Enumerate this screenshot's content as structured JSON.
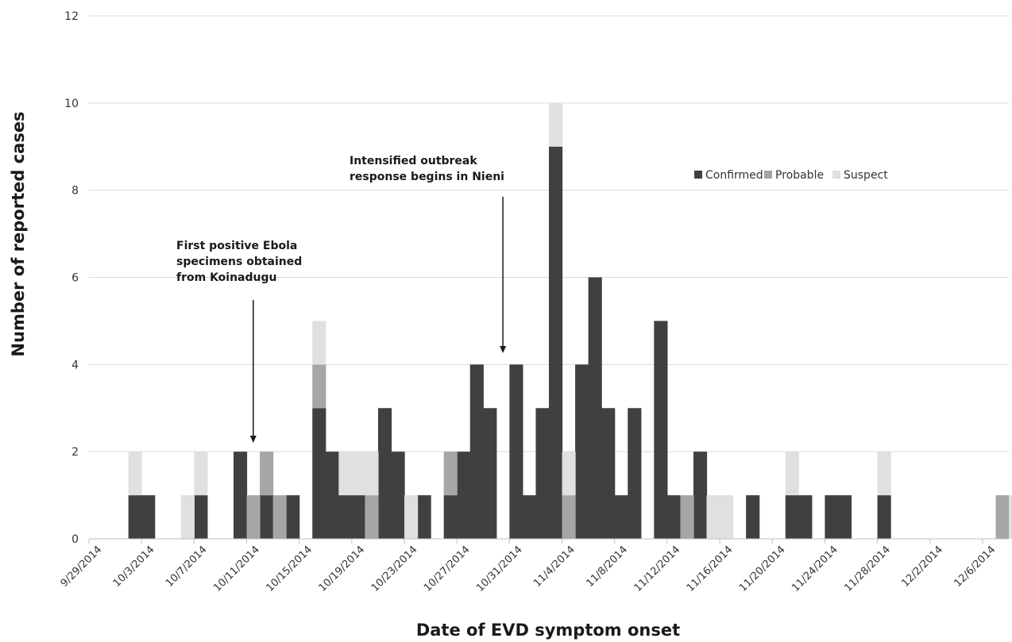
{
  "chart_data": {
    "type": "bar",
    "stacked": true,
    "xlabel": "Date of EVD symptom onset",
    "ylabel": "Number of reported cases",
    "ylim": [
      0,
      12
    ],
    "yticks": [
      0,
      2,
      4,
      6,
      8,
      10,
      12
    ],
    "grid": true,
    "legend_position": "top-right",
    "start_date": "2014-09-29",
    "num_days": 70,
    "xtick_labels": [
      "9/29/2014",
      "10/3/2014",
      "10/7/2014",
      "10/11/2014",
      "10/15/2014",
      "10/19/2014",
      "10/23/2014",
      "10/27/2014",
      "10/31/2014",
      "11/4/2014",
      "11/8/2014",
      "11/12/2014",
      "11/16/2014",
      "11/20/2014",
      "11/24/2014",
      "11/28/2014",
      "12/2/2014",
      "12/6/2014"
    ],
    "series": [
      {
        "name": "Confirmed",
        "color": "#404040",
        "points": [
          [
            "2014-10-02",
            1
          ],
          [
            "2014-10-03",
            1
          ],
          [
            "2014-10-07",
            1
          ],
          [
            "2014-10-10",
            2
          ],
          [
            "2014-10-12",
            1
          ],
          [
            "2014-10-14",
            1
          ],
          [
            "2014-10-16",
            3
          ],
          [
            "2014-10-17",
            2
          ],
          [
            "2014-10-18",
            1
          ],
          [
            "2014-10-19",
            1
          ],
          [
            "2014-10-21",
            3
          ],
          [
            "2014-10-22",
            2
          ],
          [
            "2014-10-24",
            1
          ],
          [
            "2014-10-26",
            1
          ],
          [
            "2014-10-27",
            2
          ],
          [
            "2014-10-28",
            4
          ],
          [
            "2014-10-29",
            3
          ],
          [
            "2014-10-31",
            4
          ],
          [
            "2014-11-01",
            1
          ],
          [
            "2014-11-02",
            3
          ],
          [
            "2014-11-03",
            9
          ],
          [
            "2014-11-05",
            4
          ],
          [
            "2014-11-06",
            6
          ],
          [
            "2014-11-07",
            3
          ],
          [
            "2014-11-08",
            1
          ],
          [
            "2014-11-09",
            3
          ],
          [
            "2014-11-11",
            5
          ],
          [
            "2014-11-12",
            1
          ],
          [
            "2014-11-14",
            2
          ],
          [
            "2014-11-18",
            1
          ],
          [
            "2014-11-21",
            1
          ],
          [
            "2014-11-22",
            1
          ],
          [
            "2014-11-24",
            1
          ],
          [
            "2014-11-25",
            1
          ],
          [
            "2014-11-28",
            1
          ]
        ]
      },
      {
        "name": "Probable",
        "color": "#a6a6a6",
        "points": [
          [
            "2014-10-11",
            1
          ],
          [
            "2014-10-12",
            1
          ],
          [
            "2014-10-13",
            1
          ],
          [
            "2014-10-16",
            1
          ],
          [
            "2014-10-20",
            1
          ],
          [
            "2014-10-26",
            1
          ],
          [
            "2014-11-04",
            1
          ],
          [
            "2014-11-13",
            1
          ],
          [
            "2014-12-07",
            1
          ]
        ]
      },
      {
        "name": "Suspect",
        "color": "#e0e0e0",
        "points": [
          [
            "2014-10-02",
            1
          ],
          [
            "2014-10-06",
            1
          ],
          [
            "2014-10-07",
            1
          ],
          [
            "2014-10-16",
            1
          ],
          [
            "2014-10-18",
            1
          ],
          [
            "2014-10-19",
            1
          ],
          [
            "2014-10-20",
            1
          ],
          [
            "2014-10-23",
            1
          ],
          [
            "2014-11-03",
            1
          ],
          [
            "2014-11-04",
            1
          ],
          [
            "2014-11-15",
            1
          ],
          [
            "2014-11-16",
            1
          ],
          [
            "2014-11-21",
            1
          ],
          [
            "2014-11-28",
            1
          ],
          [
            "2014-12-08",
            1
          ]
        ]
      }
    ],
    "annotations": [
      {
        "lines": [
          "First positive Ebola",
          "specimens obtained",
          "from Koinadugu"
        ],
        "date": "2014-10-11"
      },
      {
        "lines": [
          "Intensified outbreak",
          "response begins in Nieni"
        ],
        "date": "2014-10-30"
      }
    ]
  }
}
